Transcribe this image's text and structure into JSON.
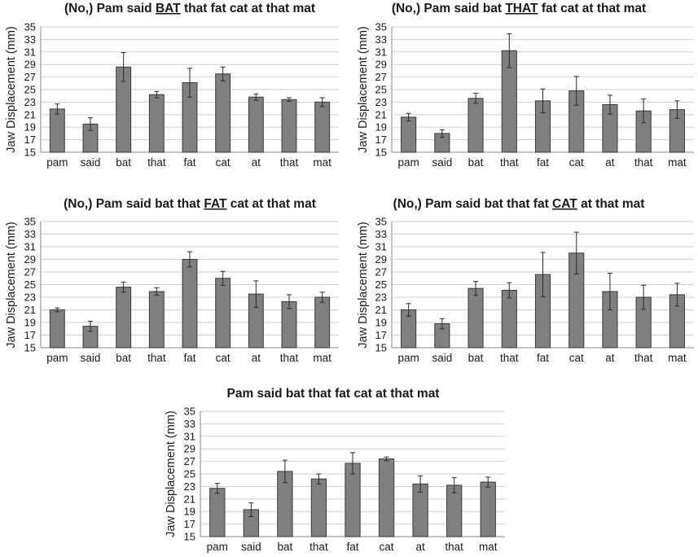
{
  "colors": {
    "bar_fill": "#808080",
    "bar_stroke": "#3a3a3a",
    "grid": "#cfcfcf",
    "axis": "#8a8a8a",
    "error_bar": "#2a2a2a"
  },
  "chart_data": [
    {
      "type": "bar",
      "title_parts": [
        {
          "text": "(No,) Pam said ",
          "underline": false
        },
        {
          "text": "BAT",
          "underline": true
        },
        {
          "text": " that fat cat at that mat",
          "underline": false
        }
      ],
      "ylabel": "Jaw Displacement (mm)",
      "xlabel": "",
      "ylim": [
        15,
        35
      ],
      "yticks": [
        15,
        17,
        19,
        21,
        23,
        25,
        27,
        29,
        31,
        33,
        35
      ],
      "grid": true,
      "categories": [
        "pam",
        "said",
        "bat",
        "that",
        "fat",
        "cat",
        "at",
        "that",
        "mat"
      ],
      "values": [
        21.9,
        19.5,
        28.6,
        24.2,
        26.1,
        27.5,
        23.8,
        23.4,
        23.0
      ],
      "errors": [
        0.8,
        1.0,
        2.3,
        0.5,
        2.3,
        1.1,
        0.5,
        0.3,
        0.7
      ]
    },
    {
      "type": "bar",
      "title_parts": [
        {
          "text": "(No,) Pam said bat ",
          "underline": false
        },
        {
          "text": "THAT",
          "underline": true
        },
        {
          "text": " fat cat at that mat",
          "underline": false
        }
      ],
      "ylabel": "Jaw Displacement (mm)",
      "xlabel": "",
      "ylim": [
        15,
        35
      ],
      "yticks": [
        15,
        17,
        19,
        21,
        23,
        25,
        27,
        29,
        31,
        33,
        35
      ],
      "grid": true,
      "categories": [
        "pam",
        "said",
        "bat",
        "that",
        "fat",
        "cat",
        "at",
        "that",
        "mat"
      ],
      "values": [
        20.6,
        18.0,
        23.6,
        31.2,
        23.2,
        24.8,
        22.6,
        21.6,
        21.8
      ],
      "errors": [
        0.6,
        0.6,
        0.8,
        2.7,
        1.9,
        2.3,
        1.5,
        1.9,
        1.4
      ]
    },
    {
      "type": "bar",
      "title_parts": [
        {
          "text": "(No,) Pam said bat that ",
          "underline": false
        },
        {
          "text": "FAT",
          "underline": true
        },
        {
          "text": " cat at that mat",
          "underline": false
        }
      ],
      "ylabel": "Jaw Displacement (mm)",
      "xlabel": "",
      "ylim": [
        15,
        35
      ],
      "yticks": [
        15,
        17,
        19,
        21,
        23,
        25,
        27,
        29,
        31,
        33,
        35
      ],
      "grid": true,
      "categories": [
        "pam",
        "said",
        "bat",
        "that",
        "fat",
        "cat",
        "at",
        "that",
        "mat"
      ],
      "values": [
        21.0,
        18.4,
        24.6,
        23.9,
        29.0,
        26.0,
        23.5,
        22.3,
        23.0
      ],
      "errors": [
        0.3,
        0.8,
        0.8,
        0.6,
        1.2,
        1.1,
        2.1,
        1.1,
        0.8
      ]
    },
    {
      "type": "bar",
      "title_parts": [
        {
          "text": "(No,) Pam said bat that fat ",
          "underline": false
        },
        {
          "text": "CAT",
          "underline": true
        },
        {
          "text": " at that mat",
          "underline": false
        }
      ],
      "ylabel": "Jaw Displacement (mm)",
      "xlabel": "",
      "ylim": [
        15,
        35
      ],
      "yticks": [
        15,
        17,
        19,
        21,
        23,
        25,
        27,
        29,
        31,
        33,
        35
      ],
      "grid": true,
      "categories": [
        "pam",
        "said",
        "bat",
        "that",
        "fat",
        "cat",
        "at",
        "that",
        "mat"
      ],
      "values": [
        21.0,
        18.8,
        24.4,
        24.1,
        26.6,
        30.0,
        23.9,
        23.0,
        23.4
      ],
      "errors": [
        1.0,
        0.8,
        1.1,
        1.2,
        3.5,
        3.3,
        2.9,
        1.9,
        1.8
      ]
    },
    {
      "type": "bar",
      "title_parts": [
        {
          "text": "Pam said bat that fat cat at that mat",
          "underline": false
        }
      ],
      "ylabel": "Jaw Displacement (mm)",
      "xlabel": "",
      "ylim": [
        15,
        35
      ],
      "yticks": [
        15,
        17,
        19,
        21,
        23,
        25,
        27,
        29,
        31,
        33,
        35
      ],
      "grid": true,
      "categories": [
        "pam",
        "said",
        "bat",
        "that",
        "fat",
        "cat",
        "at",
        "that",
        "mat"
      ],
      "values": [
        22.7,
        19.3,
        25.4,
        24.2,
        26.7,
        27.4,
        23.4,
        23.2,
        23.7
      ],
      "errors": [
        0.8,
        1.1,
        1.8,
        0.8,
        1.7,
        0.3,
        1.3,
        1.2,
        0.8
      ]
    }
  ]
}
